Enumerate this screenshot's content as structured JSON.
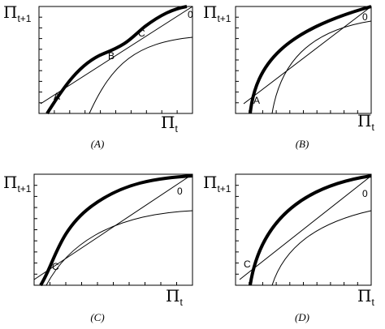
{
  "panels": [
    {
      "caption": "(A)",
      "y_label": {
        "main": "Π",
        "sub": "t+1"
      },
      "x_label": {
        "main": "Π",
        "sub": "t"
      },
      "point_labels": [
        "A",
        "B",
        "C",
        "0"
      ]
    },
    {
      "caption": "(B)",
      "y_label": {
        "main": "Π",
        "sub": "t+1"
      },
      "x_label": {
        "main": "Π",
        "sub": "t"
      },
      "point_labels": [
        "A",
        "0"
      ]
    },
    {
      "caption": "(C)",
      "y_label": {
        "main": "Π",
        "sub": "t+1"
      },
      "x_label": {
        "main": "Π",
        "sub": "t"
      },
      "point_labels": [
        "C",
        "0"
      ]
    },
    {
      "caption": "(D)",
      "y_label": {
        "main": "Π",
        "sub": "t+1"
      },
      "x_label": {
        "main": "Π",
        "sub": "t"
      },
      "point_labels": [
        "C",
        "0"
      ]
    }
  ]
}
